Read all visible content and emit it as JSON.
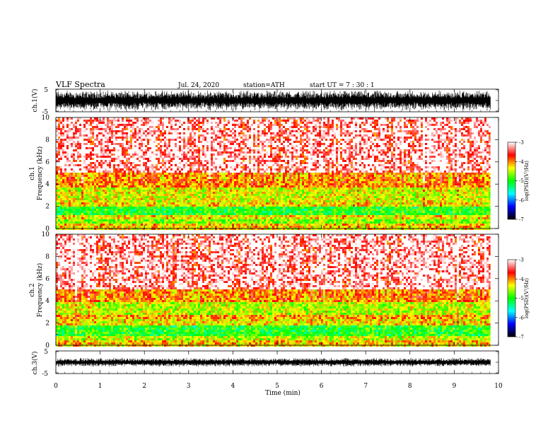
{
  "header": {
    "title": "VLF  Spectra",
    "date": "Jul.  24,  2020",
    "station": "station=ATH",
    "start": "start  UT  =    7  : 30 : 1"
  },
  "chart_data": [
    {
      "type": "line",
      "name": "ch1-waveform",
      "ylabel": "ch.1(V)",
      "ylim": [
        -5,
        5
      ],
      "yticks": [
        "5",
        "-5"
      ],
      "amplitude": 5,
      "x_extent": [
        0,
        9.82
      ]
    },
    {
      "type": "heatmap",
      "name": "ch1-spectrogram",
      "ylabel_line1": "ch.1",
      "ylabel_line2": "Frequency (kHz)",
      "ylim": [
        0,
        10
      ],
      "yticks": [
        "0",
        "2",
        "4",
        "6",
        "8",
        "10"
      ],
      "bands_khz": [
        {
          "from": 0,
          "to": 0.4,
          "level": -4.2
        },
        {
          "from": 0.4,
          "to": 0.9,
          "level": -4.7
        },
        {
          "from": 0.9,
          "to": 1.2,
          "level": -4.3
        },
        {
          "from": 1.2,
          "to": 2.0,
          "level": -5.0
        },
        {
          "from": 2.0,
          "to": 2.3,
          "level": -4.3
        },
        {
          "from": 2.3,
          "to": 3.6,
          "level": -4.4
        },
        {
          "from": 3.6,
          "to": 5.0,
          "level": -4.0
        },
        {
          "from": 5.0,
          "to": 10.0,
          "level": -3.4
        }
      ]
    },
    {
      "type": "heatmap",
      "name": "ch2-spectrogram",
      "ylabel_line1": "ch.2",
      "ylabel_line2": "Frequency (kHz)",
      "ylim": [
        0,
        10
      ],
      "yticks": [
        "0",
        "2",
        "4",
        "6",
        "8",
        "10"
      ],
      "bands_khz": [
        {
          "from": 0,
          "to": 0.5,
          "level": -4.2
        },
        {
          "from": 0.5,
          "to": 0.9,
          "level": -4.5
        },
        {
          "from": 0.9,
          "to": 1.8,
          "level": -5.0
        },
        {
          "from": 1.8,
          "to": 2.4,
          "level": -4.3
        },
        {
          "from": 2.4,
          "to": 2.8,
          "level": -4.1
        },
        {
          "from": 2.8,
          "to": 3.8,
          "level": -4.5
        },
        {
          "from": 3.8,
          "to": 5.0,
          "level": -4.0
        },
        {
          "from": 5.0,
          "to": 10.0,
          "level": -3.4
        }
      ]
    },
    {
      "type": "line",
      "name": "ch3-waveform",
      "ylabel": "ch.3(V)",
      "ylim": [
        -5,
        5
      ],
      "yticks": [
        "5",
        "-5"
      ],
      "amplitude": 0.5,
      "offset": 0,
      "x_extent": [
        0,
        9.82
      ]
    }
  ],
  "xaxis": {
    "label": "Time  (min)",
    "xlim": [
      0,
      10
    ],
    "ticks": [
      "0",
      "1",
      "2",
      "3",
      "4",
      "5",
      "6",
      "7",
      "8",
      "9",
      "10"
    ]
  },
  "colorbar": {
    "label": "log(PSD)(V²/Hz)",
    "range": [
      -7,
      -3
    ],
    "ticks": [
      "-3",
      "-4",
      "-5",
      "-6",
      "-7"
    ],
    "stops": [
      "#000000",
      "#0000ff",
      "#00ffff",
      "#00ff00",
      "#ffff00",
      "#ff0000",
      "#ffffff"
    ]
  }
}
